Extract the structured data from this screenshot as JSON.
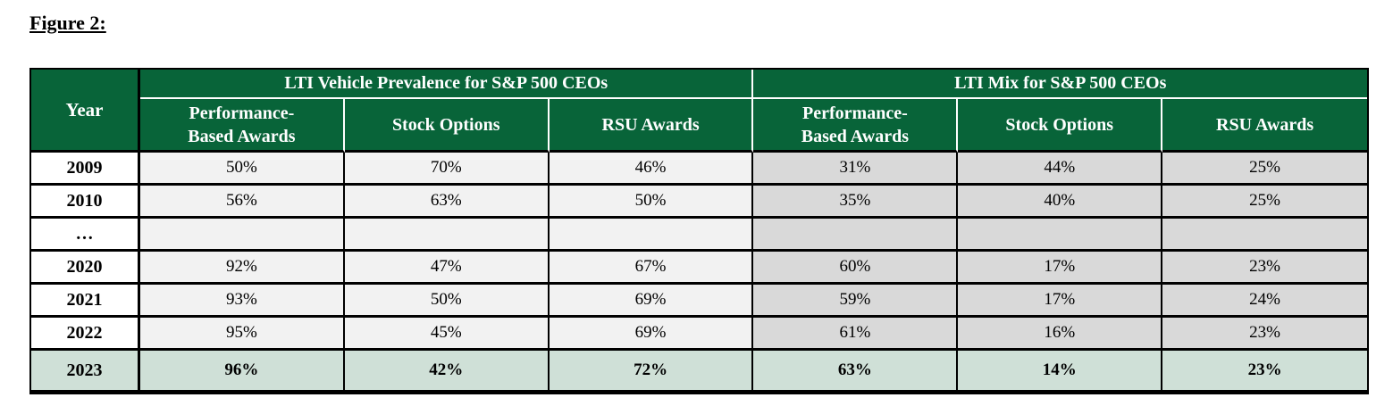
{
  "figure": {
    "label": "Figure 2:"
  },
  "table": {
    "corner_header": "Year",
    "groups": [
      {
        "title": "LTI Vehicle Prevalence for S&P 500 CEOs",
        "columns": [
          "Performance-Based Awards",
          "Stock Options",
          "RSU Awards"
        ]
      },
      {
        "title": "LTI Mix for S&P 500 CEOs",
        "columns": [
          "Performance-Based Awards",
          "Stock Options",
          "RSU Awards"
        ]
      }
    ],
    "rows": [
      {
        "year": "2009",
        "prevalence": [
          "50%",
          "70%",
          "46%"
        ],
        "mix": [
          "31%",
          "44%",
          "25%"
        ],
        "highlight": false
      },
      {
        "year": "2010",
        "prevalence": [
          "56%",
          "63%",
          "50%"
        ],
        "mix": [
          "35%",
          "40%",
          "25%"
        ],
        "highlight": false
      },
      {
        "year": "…",
        "prevalence": [
          "",
          "",
          ""
        ],
        "mix": [
          "",
          "",
          ""
        ],
        "highlight": false
      },
      {
        "year": "2020",
        "prevalence": [
          "92%",
          "47%",
          "67%"
        ],
        "mix": [
          "60%",
          "17%",
          "23%"
        ],
        "highlight": false
      },
      {
        "year": "2021",
        "prevalence": [
          "93%",
          "50%",
          "69%"
        ],
        "mix": [
          "59%",
          "17%",
          "24%"
        ],
        "highlight": false
      },
      {
        "year": "2022",
        "prevalence": [
          "95%",
          "45%",
          "69%"
        ],
        "mix": [
          "61%",
          "16%",
          "23%"
        ],
        "highlight": false
      },
      {
        "year": "2023",
        "prevalence": [
          "96%",
          "42%",
          "72%"
        ],
        "mix": [
          "63%",
          "14%",
          "23%"
        ],
        "highlight": true
      }
    ],
    "colors": {
      "header_green": "#086439",
      "header_text": "#ffffff",
      "highlight_green": "#cfe0d7",
      "prevalence_cell_bg": "#f2f2f2",
      "mix_cell_bg": "#d9d9d9",
      "border_black": "#000000"
    }
  },
  "chart_data": {
    "type": "table",
    "title": "Figure 2",
    "column_groups": [
      {
        "title": "LTI Vehicle Prevalence for S&P 500 CEOs",
        "span": 3
      },
      {
        "title": "LTI Mix for S&P 500 CEOs",
        "span": 3
      }
    ],
    "columns": [
      "Year",
      "Performance-Based Awards",
      "Stock Options",
      "RSU Awards",
      "Performance-Based Awards",
      "Stock Options",
      "RSU Awards"
    ],
    "rows": [
      [
        "2009",
        "50%",
        "70%",
        "46%",
        "31%",
        "44%",
        "25%"
      ],
      [
        "2010",
        "56%",
        "63%",
        "50%",
        "35%",
        "40%",
        "25%"
      ],
      [
        "…",
        "",
        "",
        "",
        "",
        "",
        ""
      ],
      [
        "2020",
        "92%",
        "47%",
        "67%",
        "60%",
        "17%",
        "23%"
      ],
      [
        "2021",
        "93%",
        "50%",
        "69%",
        "59%",
        "17%",
        "24%"
      ],
      [
        "2022",
        "95%",
        "45%",
        "69%",
        "61%",
        "16%",
        "23%"
      ],
      [
        "2023",
        "96%",
        "42%",
        "72%",
        "63%",
        "14%",
        "23%"
      ]
    ]
  }
}
